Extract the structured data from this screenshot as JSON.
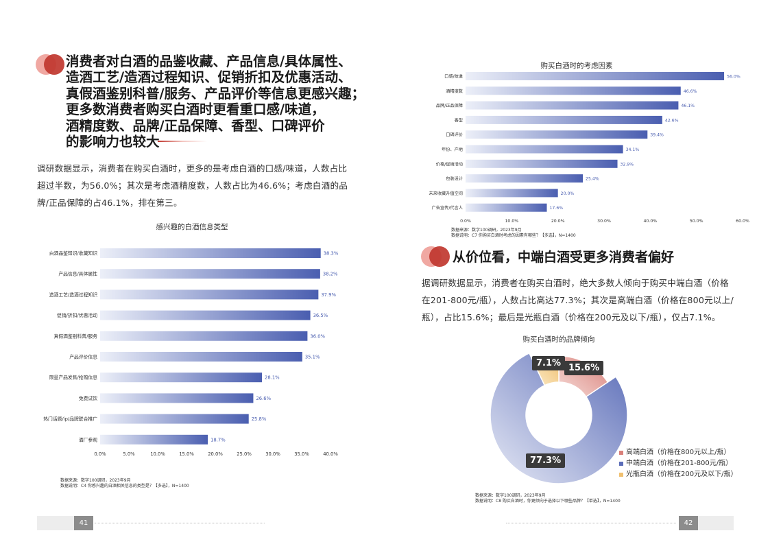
{
  "left_page": {
    "title_lines": [
      "消费者对白酒的品鉴收藏、产品信息/具体属性、",
      "造酒工艺/造酒过程知识、促销折扣及优惠活动、",
      "真假酒鉴别科普/服务、产品评价等信息更感兴趣；",
      "更多数消费者购买白酒时更看重口感/味道，",
      "酒精度数、品牌/正品保障、香型、口碑评价",
      "的影响力也较大"
    ],
    "paragraph": "调研数据显示，消费者在购买白酒时，更多的是考虑白酒的口感/味道，人数占比超过半数，为56.0%；其次是考虑酒精度数，人数占比为46.6%；考虑白酒的品牌/正品保障的占46.1%，排在第三。",
    "source_line1": "数据来源：数字100调研，2023年9月",
    "source_line2": "数据说明：C4 你感兴趣的白酒相关信息的类型是？【多选】，N=1400",
    "page_number": "41"
  },
  "right_page": {
    "section_title": "从价位看，中端白酒受更多消费者偏好",
    "paragraph": "据调研数据显示，消费者在购买白酒时，绝大多数人倾向于购买中端白酒（价格在201-800元/瓶），人数占比高达77.3%；其次是高端白酒（价格在800元以上/瓶），占比15.6%；最后是光瓶白酒（价格在200元及以下/瓶），仅占7.1%。",
    "source1_line1": "数据来源：数字100调研，2023年9月",
    "source1_line2": "数据说明：C7 你购买白酒时考虑的因素有哪些？【多选】，N=1400",
    "source2_line1": "数据来源：数字100调研，2023年9月",
    "source2_line2": "数据说明：C8 购买白酒时，你更倾向于选择以下哪些品牌？【单选】，N=1400",
    "page_number": "42"
  },
  "colors": {
    "accent_red": "#c0372f",
    "bar_dark": "#4a5eb0",
    "bar_light": "#eceff8",
    "pie_high": "#d9807a",
    "pie_mid": "#5b6db8",
    "pie_low": "#f0c070"
  },
  "chart_data": [
    {
      "type": "bar",
      "orientation": "horizontal",
      "title": "感兴趣的白酒信息类型",
      "categories": [
        "白酒品鉴知识/收藏知识",
        "产品信息/具体属性",
        "造酒工艺/造酒过程知识",
        "促销/折扣/优惠活动",
        "真假酒鉴别科普/服务",
        "产品评价信息",
        "限量产品发售/抢购信息",
        "免费试饮",
        "热门话题/ip/品牌联合推广",
        "酒厂参观"
      ],
      "values": [
        38.3,
        38.2,
        37.9,
        36.5,
        36.0,
        35.1,
        28.1,
        26.6,
        25.8,
        18.7
      ],
      "value_labels": [
        "38.3%",
        "38.2%",
        "37.9%",
        "36.5%",
        "36.0%",
        "35.1%",
        "28.1%",
        "26.6%",
        "25.8%",
        "18.7%"
      ],
      "xlim": [
        0,
        40
      ],
      "xticks": [
        "0.0%",
        "5.0%",
        "10.0%",
        "15.0%",
        "20.0%",
        "25.0%",
        "30.0%",
        "35.0%",
        "40.0%"
      ],
      "grid": false
    },
    {
      "type": "bar",
      "orientation": "horizontal",
      "title": "购买白酒时的考虑因素",
      "categories": [
        "口感/味道",
        "酒精度数",
        "品牌/正品保障",
        "香型",
        "口碑评价",
        "年份、产地",
        "价格/促销活动",
        "包装设计",
        "未来收藏升值空间",
        "广告宣传/代言人"
      ],
      "values": [
        56.0,
        46.6,
        46.1,
        42.6,
        39.4,
        34.1,
        32.9,
        25.4,
        20.0,
        17.6
      ],
      "value_labels": [
        "56.0%",
        "46.6%",
        "46.1%",
        "42.6%",
        "39.4%",
        "34.1%",
        "32.9%",
        "25.4%",
        "20.0%",
        "17.6%"
      ],
      "xlim": [
        0,
        60
      ],
      "xticks": [
        "0.0%",
        "10.0%",
        "20.0%",
        "30.0%",
        "40.0%",
        "50.0%",
        "60.0%"
      ],
      "grid": false
    },
    {
      "type": "pie",
      "donut": true,
      "title": "购买白酒时的品牌倾向",
      "labels": [
        "高端白酒（价格在800元以上/瓶）",
        "中端白酒（价格在201-800元/瓶）",
        "光瓶白酒（价格在200元及以下/瓶）"
      ],
      "values": [
        15.6,
        77.3,
        7.1
      ],
      "value_labels": [
        "15.6%",
        "77.3%",
        "7.1%"
      ],
      "legend": "right"
    }
  ]
}
